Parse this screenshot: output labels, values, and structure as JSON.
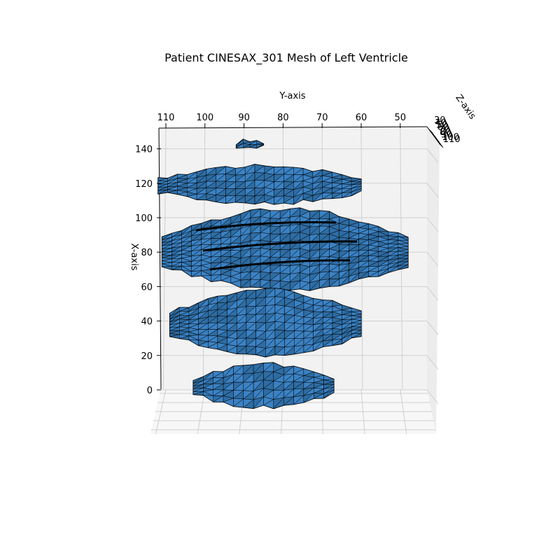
{
  "chart_data": {
    "type": "surface3d",
    "title": "Patient CINESAX_301 Mesh of Left Ventricle",
    "xlabel": "X-axis",
    "ylabel": "Y-axis",
    "zlabel": "Z-axis",
    "x_ticks": [
      0,
      20,
      40,
      60,
      80,
      100,
      120,
      140
    ],
    "y_ticks": [
      110,
      100,
      90,
      80,
      70,
      60,
      50
    ],
    "z_ticks": [
      30,
      50,
      70,
      90,
      110
    ],
    "z_tick_labels_drawn": [
      "30",
      "40",
      "50",
      "60",
      "70",
      "80",
      "90",
      "100",
      "110"
    ],
    "xlim": [
      0,
      145
    ],
    "ylim": [
      44,
      112
    ],
    "grid": true,
    "colors": {
      "face": "#2e6da4",
      "face_light": "#3b82c4",
      "edge": "#000000",
      "pane": "#f2f2f2",
      "grid": "#cfcfcf"
    },
    "mesh_slabs": [
      {
        "x_range": [
          140,
          145
        ],
        "y_range": [
          85,
          92
        ]
      },
      {
        "x_range": [
          108,
          130
        ],
        "y_range": [
          60,
          112
        ]
      },
      {
        "x_range": [
          58,
          105
        ],
        "y_range": [
          48,
          111
        ]
      },
      {
        "x_range": [
          20,
          58
        ],
        "y_range": [
          60,
          109
        ]
      },
      {
        "x_range": [
          -10,
          15
        ],
        "y_range": [
          67,
          103
        ]
      }
    ]
  }
}
